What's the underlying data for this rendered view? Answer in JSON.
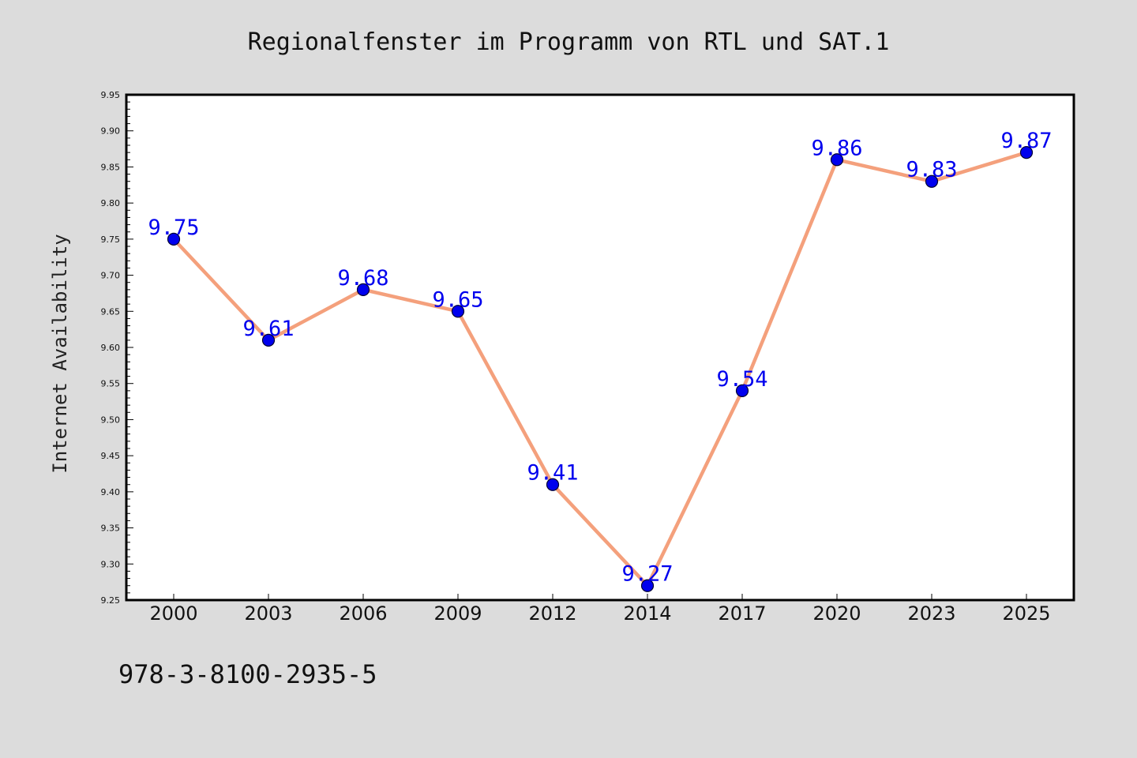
{
  "chart_data": {
    "type": "line",
    "title": "Regionalfenster im Programm von RTL und SAT.1",
    "xlabel": "",
    "ylabel": "Internet Availability",
    "categories": [
      "2000",
      "2003",
      "2006",
      "2009",
      "2012",
      "2014",
      "2017",
      "2020",
      "2023",
      "2025"
    ],
    "series": [
      {
        "values": [
          9.75,
          9.61,
          9.68,
          9.65,
          9.41,
          9.27,
          9.54,
          9.86,
          9.83,
          9.87
        ]
      }
    ],
    "data_labels": [
      "9.75",
      "9.61",
      "9.68",
      "9.65",
      "9.41",
      "9.27",
      "9.54",
      "9.86",
      "9.83",
      "9.87"
    ],
    "ylim": [
      9.25,
      9.95
    ],
    "yticks": [
      "9.25",
      "9.30",
      "9.35",
      "9.40",
      "9.45",
      "9.50",
      "9.55",
      "9.60",
      "9.65",
      "9.70",
      "9.75",
      "9.80",
      "9.85",
      "9.90",
      "9.95"
    ],
    "grid": false,
    "legend": "none",
    "colors": {
      "line": "#f4a07c",
      "marker": "#0000ee",
      "marker_edge": "#000033",
      "data_label": "#0000ee",
      "plot_background": "#ffffff",
      "figure_background": "#dcdcdc"
    }
  },
  "footer": {
    "code": "978-3-8100-2935-5"
  }
}
